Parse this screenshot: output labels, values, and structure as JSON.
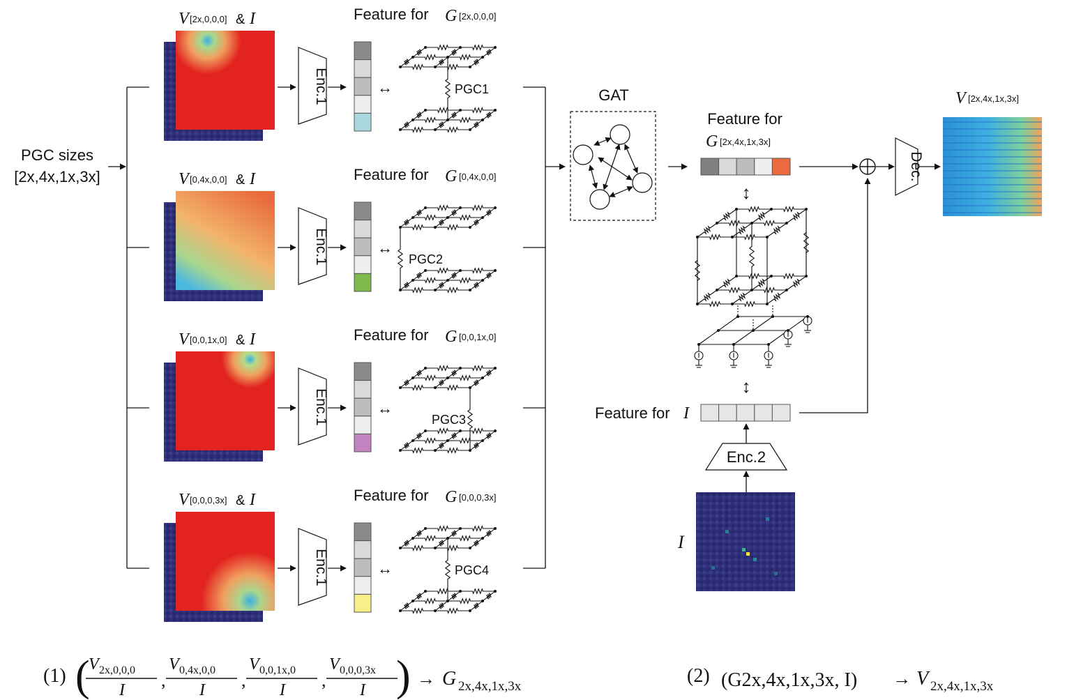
{
  "input": {
    "label_line1": "PGC sizes",
    "label_line2": "[2x,4x,1x,3x]"
  },
  "branches": [
    {
      "v_symbol": "V",
      "v_sub": "[2x,0,0,0]",
      "amp": "&",
      "i_symbol": "I",
      "encoder": "Enc.1",
      "feature_prefix": "Feature for",
      "g_symbol": "G",
      "g_sub": "[2x,0,0,0]",
      "pgc": "PGC1",
      "cell_colors": [
        "#8a8a8a",
        "#d9d9d9",
        "#bdbdbd",
        "#eeeeee",
        "#a9d7dd"
      ],
      "arrow": "↔"
    },
    {
      "v_symbol": "V",
      "v_sub": "[0,4x,0,0]",
      "amp": "&",
      "i_symbol": "I",
      "encoder": "Enc.1",
      "feature_prefix": "Feature for",
      "g_symbol": "G",
      "g_sub": "[0,4x,0,0]",
      "pgc": "PGC2",
      "cell_colors": [
        "#8a8a8a",
        "#d9d9d9",
        "#bdbdbd",
        "#eeeeee",
        "#7cba4c"
      ],
      "arrow": "↔"
    },
    {
      "v_symbol": "V",
      "v_sub": "[0,0,1x,0]",
      "amp": "&",
      "i_symbol": "I",
      "encoder": "Enc.1",
      "feature_prefix": "Feature for",
      "g_symbol": "G",
      "g_sub": "[0,0,1x,0]",
      "pgc": "PGC3",
      "cell_colors": [
        "#8a8a8a",
        "#d9d9d9",
        "#bdbdbd",
        "#eeeeee",
        "#c283c0"
      ],
      "arrow": "↔"
    },
    {
      "v_symbol": "V",
      "v_sub": "[0,0,0,3x]",
      "amp": "&",
      "i_symbol": "I",
      "encoder": "Enc.1",
      "feature_prefix": "Feature for",
      "g_symbol": "G",
      "g_sub": "[0,0,0,3x]",
      "pgc": "PGC4",
      "cell_colors": [
        "#8a8a8a",
        "#d9d9d9",
        "#bdbdbd",
        "#eeeeee",
        "#f7ef8a"
      ],
      "arrow": "↔"
    }
  ],
  "gat": {
    "label": "GAT"
  },
  "combined": {
    "feature_prefix": "Feature for",
    "g_symbol": "G",
    "g_sub": "[2x,4x,1x,3x]",
    "cell_colors": [
      "#808080",
      "#d9d9d9",
      "#bdbdbd",
      "#eeeeee",
      "#ec6a3f"
    ],
    "updown": "↕"
  },
  "current": {
    "feature_prefix": "Feature for",
    "i_symbol": "I",
    "cell_colors": [
      "#e6e6e6",
      "#e6e6e6",
      "#e6e6e6",
      "#e6e6e6",
      "#e6e6e6"
    ],
    "encoder": "Enc.2",
    "map_label": "I"
  },
  "sum": {
    "symbol": "⊕"
  },
  "decoder": {
    "label": "Dec."
  },
  "output": {
    "v_symbol": "V",
    "v_sub": "[2x,4x,1x,3x]"
  },
  "equations": {
    "eq1_number": "(1)",
    "eq1_numerators": [
      "V2x,0,0,0",
      "V0,4x,0,0",
      "V0,0,1x,0",
      "V0,0,0,3x"
    ],
    "eq1_denominator": "I",
    "eq1_target": "G2x,4x,1x,3x",
    "eq2_number": "(2)",
    "eq2_lhs": "(G2x,4x,1x,3x, I)",
    "eq2_target": "V2x,4x,1x,3x",
    "arrow": "→"
  }
}
